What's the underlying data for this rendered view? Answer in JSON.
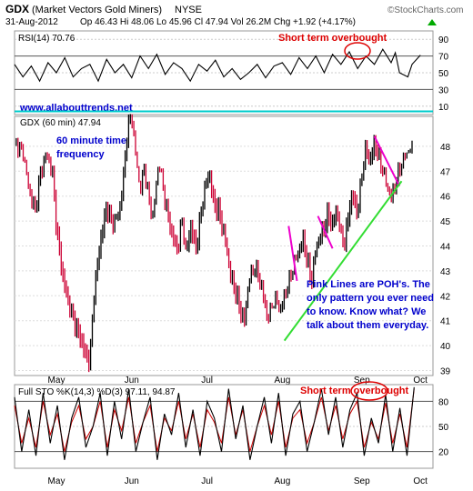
{
  "header": {
    "symbol": "GDX",
    "name": "(Market Vectors Gold Miners)",
    "exchange": "NYSE",
    "date": "31-Aug-2012",
    "quote": "Op 46.43  Hi 48.06  Lo 45.96  Cl 47.94  Vol 26.2M  Chg +1.92 (+4.17%)",
    "source": "©StockCharts.com",
    "quote_arrow_color": "#00aa00"
  },
  "annotations": {
    "website": "www.allabouttrends.net",
    "timeframe": [
      "60 minute time",
      "frequency"
    ],
    "overbought_rsi": "Short term overbought",
    "overbought_sto": "Short term overbought",
    "poh_note": [
      "Pink Lines are POH's. The",
      "only pattern you ever need",
      "to know. Know what? We",
      "talk about them everyday."
    ]
  },
  "colors": {
    "price_up": "#000000",
    "price_down": "#cc0033",
    "trendline": "#33dd33",
    "pink_lines": "#ee00cc",
    "cyan_line": "#00cccc",
    "annotation_red": "#dd0000",
    "annotation_blue": "#0000cc"
  },
  "chart_data": [
    {
      "type": "line",
      "panel": "RSI",
      "legend": "RSI(14) 70.76",
      "y_ticks": [
        10,
        30,
        50,
        70,
        90
      ],
      "ylim": [
        0,
        100
      ],
      "reference_lines": [
        70,
        30
      ],
      "series": [
        {
          "name": "RSI(14)",
          "points": [
            [
              0,
              60
            ],
            [
              0.02,
              45
            ],
            [
              0.04,
              58
            ],
            [
              0.06,
              40
            ],
            [
              0.08,
              62
            ],
            [
              0.1,
              50
            ],
            [
              0.12,
              68
            ],
            [
              0.14,
              45
            ],
            [
              0.16,
              55
            ],
            [
              0.18,
              60
            ],
            [
              0.2,
              40
            ],
            [
              0.22,
              66
            ],
            [
              0.24,
              50
            ],
            [
              0.26,
              60
            ],
            [
              0.28,
              44
            ],
            [
              0.3,
              70
            ],
            [
              0.32,
              55
            ],
            [
              0.34,
              72
            ],
            [
              0.36,
              48
            ],
            [
              0.38,
              62
            ],
            [
              0.4,
              55
            ],
            [
              0.42,
              40
            ],
            [
              0.44,
              60
            ],
            [
              0.46,
              52
            ],
            [
              0.48,
              65
            ],
            [
              0.5,
              45
            ],
            [
              0.52,
              55
            ],
            [
              0.54,
              42
            ],
            [
              0.56,
              50
            ],
            [
              0.58,
              60
            ],
            [
              0.6,
              44
            ],
            [
              0.62,
              58
            ],
            [
              0.64,
              62
            ],
            [
              0.66,
              48
            ],
            [
              0.68,
              68
            ],
            [
              0.7,
              55
            ],
            [
              0.72,
              70
            ],
            [
              0.74,
              50
            ],
            [
              0.76,
              72
            ],
            [
              0.78,
              60
            ],
            [
              0.8,
              75
            ],
            [
              0.82,
              55
            ],
            [
              0.84,
              70
            ],
            [
              0.86,
              60
            ],
            [
              0.88,
              78
            ],
            [
              0.9,
              62
            ],
            [
              0.91,
              74
            ],
            [
              0.92,
              50
            ],
            [
              0.94,
              45
            ],
            [
              0.95,
              60
            ],
            [
              0.97,
              71
            ]
          ]
        }
      ]
    },
    {
      "type": "candlestick",
      "panel": "Price",
      "legend": "GDX (60 min) 47.94",
      "x_ticks": [
        "May",
        "Jun",
        "Jul",
        "Aug",
        "Sep",
        "Oct"
      ],
      "y_ticks": [
        39,
        40,
        41,
        42,
        43,
        44,
        45,
        46,
        47,
        48
      ],
      "ylim": [
        38.8,
        49.2
      ],
      "reference_line": 49.4,
      "price_path": [
        [
          0,
          48.3
        ],
        [
          0.02,
          47.8
        ],
        [
          0.035,
          46.2
        ],
        [
          0.05,
          45.5
        ],
        [
          0.06,
          46.8
        ],
        [
          0.075,
          47.6
        ],
        [
          0.09,
          47.0
        ],
        [
          0.1,
          44.8
        ],
        [
          0.115,
          42.8
        ],
        [
          0.13,
          41.5
        ],
        [
          0.145,
          40.8
        ],
        [
          0.16,
          40.2
        ],
        [
          0.17,
          39.6
        ],
        [
          0.18,
          39.3
        ],
        [
          0.19,
          42.0
        ],
        [
          0.205,
          44.2
        ],
        [
          0.22,
          45.6
        ],
        [
          0.235,
          44.8
        ],
        [
          0.25,
          45.3
        ],
        [
          0.26,
          46.8
        ],
        [
          0.27,
          48.8
        ],
        [
          0.28,
          49.3
        ],
        [
          0.29,
          47.6
        ],
        [
          0.3,
          46.2
        ],
        [
          0.31,
          47.3
        ],
        [
          0.32,
          46.1
        ],
        [
          0.33,
          45.2
        ],
        [
          0.345,
          47.4
        ],
        [
          0.36,
          45.8
        ],
        [
          0.375,
          44.6
        ],
        [
          0.39,
          43.8
        ],
        [
          0.4,
          45.0
        ],
        [
          0.41,
          43.6
        ],
        [
          0.42,
          44.8
        ],
        [
          0.435,
          43.9
        ],
        [
          0.445,
          45.2
        ],
        [
          0.455,
          46.2
        ],
        [
          0.465,
          46.9
        ],
        [
          0.475,
          45.8
        ],
        [
          0.49,
          45.3
        ],
        [
          0.505,
          44.0
        ],
        [
          0.515,
          42.8
        ],
        [
          0.53,
          42.1
        ],
        [
          0.54,
          41.4
        ],
        [
          0.55,
          41.0
        ],
        [
          0.56,
          42.6
        ],
        [
          0.575,
          43.2
        ],
        [
          0.59,
          42.5
        ],
        [
          0.605,
          41.1
        ],
        [
          0.615,
          41.6
        ],
        [
          0.625,
          42.0
        ],
        [
          0.635,
          41.5
        ],
        [
          0.645,
          42.1
        ],
        [
          0.66,
          42.8
        ],
        [
          0.675,
          43.6
        ],
        [
          0.69,
          44.3
        ],
        [
          0.7,
          43.4
        ],
        [
          0.71,
          42.6
        ],
        [
          0.72,
          43.8
        ],
        [
          0.735,
          44.5
        ],
        [
          0.75,
          45.3
        ],
        [
          0.76,
          44.8
        ],
        [
          0.77,
          45.4
        ],
        [
          0.78,
          44.3
        ],
        [
          0.79,
          44.1
        ],
        [
          0.8,
          45.6
        ],
        [
          0.81,
          46.0
        ],
        [
          0.82,
          45.2
        ],
        [
          0.83,
          46.8
        ],
        [
          0.84,
          47.9
        ],
        [
          0.85,
          47.4
        ],
        [
          0.86,
          48.2
        ],
        [
          0.87,
          47.6
        ],
        [
          0.88,
          47.0
        ],
        [
          0.89,
          46.4
        ],
        [
          0.9,
          46.0
        ],
        [
          0.91,
          46.6
        ],
        [
          0.92,
          47.2
        ],
        [
          0.935,
          47.7
        ],
        [
          0.95,
          48.0
        ]
      ],
      "pink_lines": [
        [
          [
            0.655,
            44.8
          ],
          [
            0.675,
            42.6
          ]
        ],
        [
          [
            0.725,
            45.2
          ],
          [
            0.76,
            43.9
          ]
        ],
        [
          [
            0.86,
            48.4
          ],
          [
            0.92,
            46.4
          ]
        ]
      ],
      "trendline": [
        [
          0.645,
          40.2
        ],
        [
          0.925,
          46.6
        ]
      ]
    },
    {
      "type": "line",
      "panel": "STO",
      "legend": "Full STO %K(14,3) %D(3) 97.11, 94.87",
      "y_ticks": [
        20,
        50,
        80
      ],
      "ylim": [
        0,
        100
      ],
      "reference_lines": [
        80,
        20
      ],
      "series": [
        {
          "name": "%K",
          "color": "#000000",
          "values": [
            85,
            20,
            70,
            15,
            90,
            30,
            75,
            10,
            60,
            85,
            25,
            50,
            90,
            15,
            80,
            35,
            95,
            20,
            55,
            85,
            10,
            65,
            40,
            90,
            25,
            70,
            15,
            80,
            60,
            20,
            95,
            35,
            75,
            10,
            50,
            85,
            30,
            90,
            15,
            65,
            80,
            20,
            55,
            95,
            40,
            85,
            25,
            70,
            90,
            15,
            60,
            30,
            88,
            20,
            72,
            15,
            97
          ]
        },
        {
          "name": "%D",
          "color": "#cc0000",
          "values": [
            75,
            30,
            60,
            25,
            80,
            40,
            65,
            20,
            55,
            75,
            35,
            50,
            80,
            25,
            70,
            45,
            85,
            30,
            55,
            75,
            20,
            60,
            45,
            80,
            35,
            65,
            25,
            70,
            55,
            30,
            85,
            40,
            70,
            20,
            50,
            75,
            40,
            80,
            25,
            60,
            70,
            30,
            55,
            85,
            45,
            75,
            35,
            65,
            80,
            25,
            55,
            35,
            78,
            30,
            65,
            25,
            95
          ]
        }
      ],
      "x_ticks": [
        "May",
        "Jun",
        "Jul",
        "Aug",
        "Sep",
        "Oct"
      ]
    }
  ]
}
